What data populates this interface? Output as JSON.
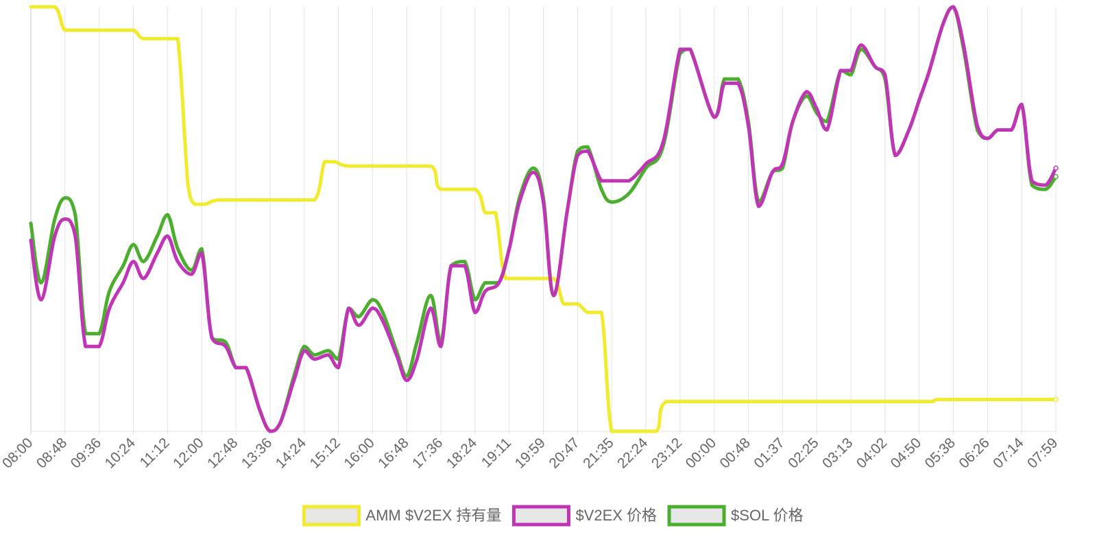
{
  "chart_data": {
    "type": "line",
    "x": [
      "08:00",
      "08:48",
      "09:36",
      "10:24",
      "11:12",
      "12:00",
      "12:48",
      "13:36",
      "14:24",
      "15:12",
      "16:00",
      "16:48",
      "17:36",
      "18:24",
      "19:11",
      "19:59",
      "20:47",
      "21:35",
      "22:24",
      "23:12",
      "00:00",
      "00:48",
      "01:37",
      "02:25",
      "03:13",
      "04:02",
      "04:50",
      "05:38",
      "06:26",
      "07:14",
      "07:59"
    ],
    "grid": true,
    "legend_position": "bottom",
    "series": [
      {
        "name": "AMM $V2EX 持有量",
        "color": "#f2ea2e",
        "values": [
          [
            0,
            1.0
          ],
          [
            0.7,
            1.0
          ],
          [
            1.0,
            0.945
          ],
          [
            1.5,
            0.945
          ],
          [
            2.5,
            0.945
          ],
          [
            3.0,
            0.945
          ],
          [
            3.3,
            0.925
          ],
          [
            4.0,
            0.925
          ],
          [
            4.3,
            0.925
          ],
          [
            4.6,
            0.58
          ],
          [
            4.8,
            0.535
          ],
          [
            5.1,
            0.535
          ],
          [
            5.5,
            0.545
          ],
          [
            6.5,
            0.545
          ],
          [
            7.5,
            0.545
          ],
          [
            8.3,
            0.545
          ],
          [
            8.6,
            0.635
          ],
          [
            8.9,
            0.635
          ],
          [
            9.3,
            0.625
          ],
          [
            10.5,
            0.625
          ],
          [
            11.7,
            0.625
          ],
          [
            12.0,
            0.57
          ],
          [
            13.0,
            0.57
          ],
          [
            13.3,
            0.515
          ],
          [
            13.6,
            0.515
          ],
          [
            13.9,
            0.36
          ],
          [
            14.5,
            0.36
          ],
          [
            15.3,
            0.36
          ],
          [
            15.6,
            0.3
          ],
          [
            16.0,
            0.3
          ],
          [
            16.3,
            0.28
          ],
          [
            16.7,
            0.28
          ],
          [
            17.0,
            0.0
          ],
          [
            17.5,
            0.0
          ],
          [
            18.3,
            0.0
          ],
          [
            18.6,
            0.07
          ],
          [
            20.0,
            0.07
          ],
          [
            25.0,
            0.07
          ],
          [
            26.3,
            0.07
          ],
          [
            26.6,
            0.075
          ],
          [
            28.0,
            0.075
          ],
          [
            30.0,
            0.075
          ]
        ]
      },
      {
        "name": "$V2EX 价格",
        "color": "#c034b6",
        "values": [
          [
            0,
            0.45
          ],
          [
            0.3,
            0.31
          ],
          [
            0.7,
            0.46
          ],
          [
            1.0,
            0.5
          ],
          [
            1.3,
            0.46
          ],
          [
            1.6,
            0.2
          ],
          [
            2.0,
            0.2
          ],
          [
            2.3,
            0.29
          ],
          [
            2.7,
            0.35
          ],
          [
            3.0,
            0.4
          ],
          [
            3.3,
            0.36
          ],
          [
            3.7,
            0.42
          ],
          [
            4.0,
            0.46
          ],
          [
            4.3,
            0.4
          ],
          [
            4.7,
            0.37
          ],
          [
            5.0,
            0.42
          ],
          [
            5.3,
            0.22
          ],
          [
            5.7,
            0.2
          ],
          [
            6.0,
            0.15
          ],
          [
            6.3,
            0.15
          ],
          [
            6.7,
            0.05
          ],
          [
            7.0,
            0.0
          ],
          [
            7.3,
            0.02
          ],
          [
            7.7,
            0.12
          ],
          [
            8.0,
            0.19
          ],
          [
            8.3,
            0.17
          ],
          [
            8.7,
            0.18
          ],
          [
            9.0,
            0.15
          ],
          [
            9.3,
            0.29
          ],
          [
            9.6,
            0.25
          ],
          [
            10.0,
            0.29
          ],
          [
            10.3,
            0.26
          ],
          [
            10.7,
            0.18
          ],
          [
            11.0,
            0.12
          ],
          [
            11.3,
            0.17
          ],
          [
            11.7,
            0.29
          ],
          [
            12.0,
            0.2
          ],
          [
            12.3,
            0.39
          ],
          [
            12.7,
            0.39
          ],
          [
            13.0,
            0.28
          ],
          [
            13.3,
            0.33
          ],
          [
            13.7,
            0.35
          ],
          [
            14.0,
            0.43
          ],
          [
            14.3,
            0.54
          ],
          [
            14.7,
            0.61
          ],
          [
            15.0,
            0.54
          ],
          [
            15.3,
            0.32
          ],
          [
            15.7,
            0.52
          ],
          [
            16.0,
            0.65
          ],
          [
            16.3,
            0.66
          ],
          [
            16.7,
            0.59
          ],
          [
            17.0,
            0.59
          ],
          [
            17.5,
            0.59
          ],
          [
            18.0,
            0.63
          ],
          [
            18.5,
            0.68
          ],
          [
            19.0,
            0.9
          ],
          [
            19.3,
            0.9
          ],
          [
            20.0,
            0.74
          ],
          [
            20.3,
            0.82
          ],
          [
            20.7,
            0.82
          ],
          [
            21.0,
            0.72
          ],
          [
            21.3,
            0.53
          ],
          [
            21.7,
            0.61
          ],
          [
            22.0,
            0.63
          ],
          [
            22.3,
            0.73
          ],
          [
            22.7,
            0.8
          ],
          [
            23.0,
            0.76
          ],
          [
            23.3,
            0.71
          ],
          [
            23.7,
            0.85
          ],
          [
            24.0,
            0.85
          ],
          [
            24.3,
            0.91
          ],
          [
            24.7,
            0.86
          ],
          [
            25.0,
            0.84
          ],
          [
            25.3,
            0.65
          ],
          [
            25.7,
            0.71
          ],
          [
            26.0,
            0.78
          ],
          [
            26.3,
            0.85
          ],
          [
            26.7,
            0.96
          ],
          [
            27.0,
            1.0
          ],
          [
            27.3,
            0.91
          ],
          [
            27.7,
            0.72
          ],
          [
            28.0,
            0.69
          ],
          [
            28.3,
            0.71
          ],
          [
            28.7,
            0.71
          ],
          [
            29.0,
            0.77
          ],
          [
            29.3,
            0.59
          ],
          [
            29.7,
            0.58
          ],
          [
            30.0,
            0.62
          ]
        ]
      },
      {
        "name": "$SOL 价格",
        "color": "#4cae2e",
        "values": [
          [
            0,
            0.49
          ],
          [
            0.3,
            0.35
          ],
          [
            0.7,
            0.5
          ],
          [
            1.0,
            0.55
          ],
          [
            1.3,
            0.51
          ],
          [
            1.6,
            0.23
          ],
          [
            2.0,
            0.23
          ],
          [
            2.3,
            0.33
          ],
          [
            2.7,
            0.39
          ],
          [
            3.0,
            0.44
          ],
          [
            3.3,
            0.4
          ],
          [
            3.7,
            0.46
          ],
          [
            4.0,
            0.51
          ],
          [
            4.3,
            0.43
          ],
          [
            4.7,
            0.38
          ],
          [
            5.0,
            0.43
          ],
          [
            5.3,
            0.22
          ],
          [
            5.7,
            0.21
          ],
          [
            6.0,
            0.15
          ],
          [
            6.3,
            0.15
          ],
          [
            6.7,
            0.05
          ],
          [
            7.0,
            0.0
          ],
          [
            7.3,
            0.02
          ],
          [
            7.7,
            0.13
          ],
          [
            8.0,
            0.2
          ],
          [
            8.3,
            0.18
          ],
          [
            8.7,
            0.19
          ],
          [
            9.0,
            0.17
          ],
          [
            9.3,
            0.29
          ],
          [
            9.6,
            0.27
          ],
          [
            10.0,
            0.31
          ],
          [
            10.3,
            0.28
          ],
          [
            10.7,
            0.19
          ],
          [
            11.0,
            0.13
          ],
          [
            11.3,
            0.21
          ],
          [
            11.7,
            0.32
          ],
          [
            12.0,
            0.21
          ],
          [
            12.3,
            0.39
          ],
          [
            12.7,
            0.4
          ],
          [
            13.0,
            0.31
          ],
          [
            13.3,
            0.35
          ],
          [
            13.7,
            0.35
          ],
          [
            14.0,
            0.43
          ],
          [
            14.3,
            0.55
          ],
          [
            14.7,
            0.62
          ],
          [
            15.0,
            0.55
          ],
          [
            15.3,
            0.32
          ],
          [
            15.7,
            0.52
          ],
          [
            16.0,
            0.66
          ],
          [
            16.3,
            0.67
          ],
          [
            16.7,
            0.57
          ],
          [
            17.0,
            0.54
          ],
          [
            17.5,
            0.56
          ],
          [
            18.0,
            0.62
          ],
          [
            18.5,
            0.67
          ],
          [
            19.0,
            0.89
          ],
          [
            19.3,
            0.9
          ],
          [
            20.0,
            0.74
          ],
          [
            20.3,
            0.83
          ],
          [
            20.7,
            0.83
          ],
          [
            21.0,
            0.73
          ],
          [
            21.3,
            0.54
          ],
          [
            21.7,
            0.61
          ],
          [
            22.0,
            0.62
          ],
          [
            22.3,
            0.73
          ],
          [
            22.7,
            0.79
          ],
          [
            23.0,
            0.75
          ],
          [
            23.3,
            0.73
          ],
          [
            23.7,
            0.85
          ],
          [
            24.0,
            0.84
          ],
          [
            24.3,
            0.9
          ],
          [
            24.7,
            0.86
          ],
          [
            25.0,
            0.83
          ],
          [
            25.3,
            0.65
          ],
          [
            25.7,
            0.71
          ],
          [
            26.0,
            0.78
          ],
          [
            26.3,
            0.85
          ],
          [
            26.7,
            0.96
          ],
          [
            27.0,
            1.0
          ],
          [
            27.3,
            0.9
          ],
          [
            27.7,
            0.71
          ],
          [
            28.0,
            0.69
          ],
          [
            28.3,
            0.71
          ],
          [
            28.7,
            0.71
          ],
          [
            29.0,
            0.77
          ],
          [
            29.3,
            0.58
          ],
          [
            29.7,
            0.57
          ],
          [
            30.0,
            0.6
          ]
        ]
      }
    ]
  }
}
